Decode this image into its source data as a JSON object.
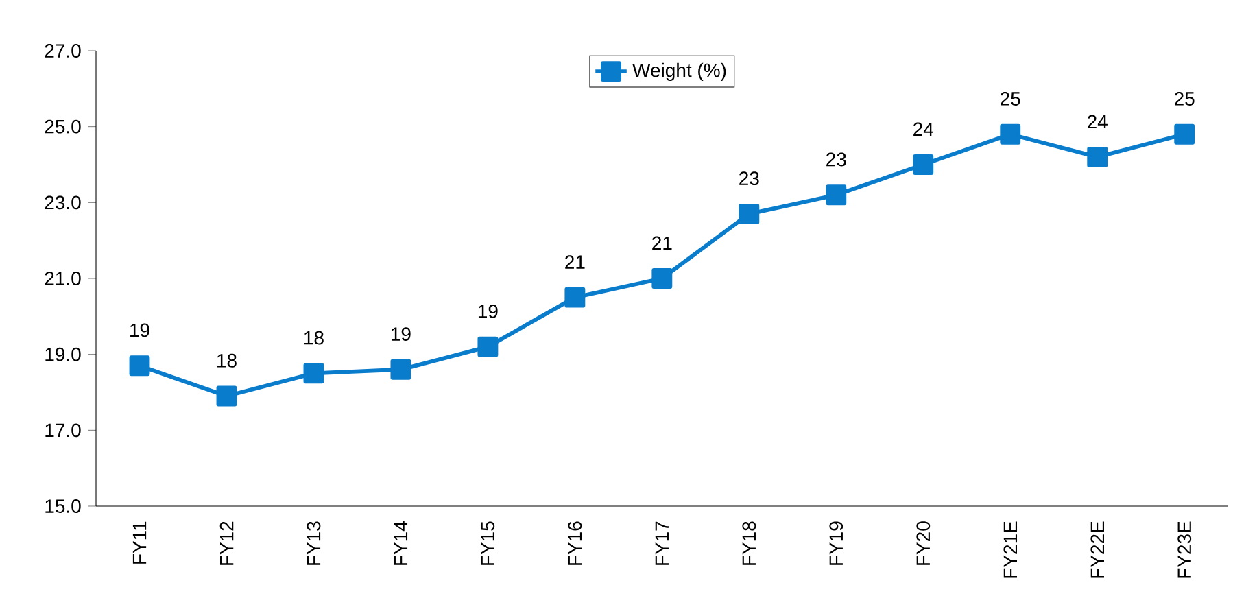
{
  "chart_data": {
    "type": "line",
    "categories": [
      "FY11",
      "FY12",
      "FY13",
      "FY14",
      "FY15",
      "FY16",
      "FY17",
      "FY18",
      "FY19",
      "FY20",
      "FY21E",
      "FY22E",
      "FY23E"
    ],
    "series": [
      {
        "name": "Weight (%)",
        "color": "#0a7ccc",
        "values": [
          18.7,
          17.9,
          18.5,
          18.6,
          19.2,
          20.5,
          21.0,
          22.7,
          23.2,
          24.0,
          24.8,
          24.2,
          24.8
        ],
        "value_labels": [
          "19",
          "18",
          "18",
          "19",
          "19",
          "21",
          "21",
          "23",
          "23",
          "24",
          "25",
          "24",
          "25"
        ]
      }
    ],
    "ylim": [
      15,
      27
    ],
    "yticks": [
      {
        "value": 15,
        "label": "15.0"
      },
      {
        "value": 17,
        "label": "17.0"
      },
      {
        "value": 19,
        "label": "19.0"
      },
      {
        "value": 21,
        "label": "21.0"
      },
      {
        "value": 23,
        "label": "23.0"
      },
      {
        "value": 25,
        "label": "25.0"
      },
      {
        "value": 27,
        "label": "27.0"
      }
    ],
    "marker": "square",
    "line_style": "solid",
    "legend": "top",
    "grid": false
  }
}
